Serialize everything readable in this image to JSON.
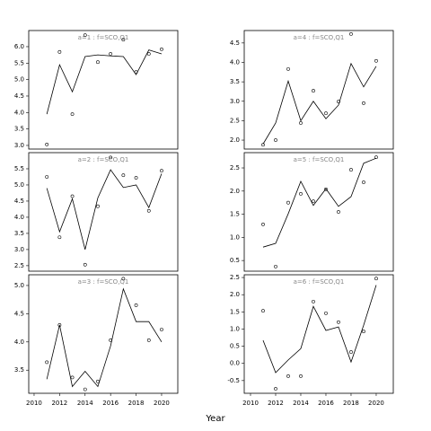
{
  "xlabel": "Year",
  "chart_data": [
    {
      "type": "line",
      "title": "a=1 : f=SCO,Q1",
      "x": [
        2011,
        2012,
        2013,
        2014,
        2015,
        2016,
        2017,
        2018,
        2019,
        2020
      ],
      "series": [
        {
          "style": "line",
          "color": "#000000",
          "values": [
            3.95,
            5.45,
            4.63,
            5.7,
            5.75,
            5.72,
            5.7,
            5.15,
            5.9,
            5.78
          ]
        },
        {
          "style": "points",
          "color": "#000000",
          "values": [
            3.03,
            5.84,
            3.95,
            6.35,
            5.53,
            5.78,
            6.21,
            5.23,
            5.78,
            5.92
          ]
        }
      ],
      "xlim": [
        2009.58,
        2021.27
      ],
      "ylim": [
        2.89,
        6.49
      ],
      "yticks": [
        {
          "value": 3,
          "label": "3.0"
        },
        {
          "value": 3.5,
          "label": "3.5"
        },
        {
          "value": 4,
          "label": "4.0"
        },
        {
          "value": 4.5,
          "label": "4.5"
        },
        {
          "value": 5,
          "label": "5.0"
        },
        {
          "value": 5.5,
          "label": "5.5"
        },
        {
          "value": 6,
          "label": "6.0"
        }
      ]
    },
    {
      "type": "line",
      "title": "a=4 : f=SCO,Q1",
      "x": [
        2011,
        2012,
        2013,
        2014,
        2015,
        2016,
        2017,
        2018,
        2019,
        2020
      ],
      "series": [
        {
          "style": "line",
          "color": "#000000",
          "values": [
            1.9,
            2.44,
            3.52,
            2.5,
            3.0,
            2.55,
            2.9,
            3.97,
            3.37,
            3.9
          ]
        },
        {
          "style": "points",
          "color": "#000000",
          "values": [
            1.88,
            2.0,
            3.83,
            2.44,
            3.27,
            2.69,
            2.99,
            4.73,
            2.95,
            4.04
          ]
        }
      ],
      "xlim": [
        2009.5,
        2021.36
      ],
      "ylim": [
        1.77,
        4.82
      ],
      "yticks": [
        {
          "value": 2,
          "label": "2.0"
        },
        2.5,
        {
          "value": 3,
          "label": "3.0"
        },
        3.5,
        {
          "value": 4,
          "label": "4.0"
        },
        4.5
      ]
    },
    {
      "type": "line",
      "title": "a=2 : f=SCO,Q1",
      "x": [
        2011,
        2012,
        2013,
        2014,
        2015,
        2016,
        2017,
        2018,
        2019,
        2020
      ],
      "series": [
        {
          "style": "line",
          "color": "#000000",
          "values": [
            4.9,
            3.55,
            4.57,
            3.0,
            4.6,
            5.47,
            4.92,
            5.0,
            4.3,
            5.35
          ]
        },
        {
          "style": "points",
          "color": "#000000",
          "values": [
            5.25,
            3.38,
            4.65,
            2.53,
            4.34,
            5.85,
            5.3,
            5.22,
            4.2,
            5.44
          ]
        }
      ],
      "xlim": [
        2009.58,
        2021.27
      ],
      "ylim": [
        2.33,
        6.0
      ],
      "yticks": [
        2.5,
        {
          "value": 3,
          "label": "3.0"
        },
        3.5,
        {
          "value": 4,
          "label": "4.0"
        },
        4.5,
        {
          "value": 5,
          "label": "5.0"
        },
        5.5
      ]
    },
    {
      "type": "line",
      "title": "a=5 : f=SCO,Q1",
      "x": [
        2011,
        2012,
        2013,
        2014,
        2015,
        2016,
        2017,
        2018,
        2019,
        2020
      ],
      "series": [
        {
          "style": "line",
          "color": "#000000",
          "values": [
            0.79,
            0.87,
            1.51,
            2.21,
            1.69,
            2.05,
            1.67,
            1.88,
            2.6,
            2.71
          ]
        },
        {
          "style": "points",
          "color": "#000000",
          "values": [
            1.28,
            0.37,
            1.75,
            1.94,
            1.78,
            2.04,
            1.55,
            2.46,
            2.19,
            2.73
          ]
        }
      ],
      "xlim": [
        2009.5,
        2021.36
      ],
      "ylim": [
        0.27,
        2.83
      ],
      "yticks": [
        0.5,
        {
          "value": 1,
          "label": "1.0"
        },
        1.5,
        {
          "value": 2,
          "label": "2.0"
        },
        2.5
      ]
    },
    {
      "type": "line",
      "title": "a=3 : f=SCO,Q1",
      "x": [
        2011,
        2012,
        2013,
        2014,
        2015,
        2016,
        2017,
        2018,
        2019,
        2020
      ],
      "series": [
        {
          "style": "line",
          "color": "#000000",
          "values": [
            3.34,
            4.3,
            3.21,
            3.48,
            3.21,
            3.93,
            4.94,
            4.36,
            4.36,
            4.0
          ]
        },
        {
          "style": "points",
          "color": "#000000",
          "values": [
            3.64,
            4.3,
            3.37,
            3.16,
            3.3,
            4.03,
            5.12,
            4.65,
            4.03,
            4.22
          ]
        }
      ],
      "xlim": [
        2009.58,
        2021.27
      ],
      "ylim": [
        3.09,
        5.19
      ],
      "xticks": [
        2010,
        2012,
        2014,
        2016,
        2018,
        2020
      ],
      "yticks": [
        3.5,
        {
          "value": 4,
          "label": "4.0"
        },
        4.5,
        {
          "value": 5,
          "label": "5.0"
        }
      ]
    },
    {
      "type": "line",
      "title": "a=6 : f=SCO,Q1",
      "x": [
        2011,
        2012,
        2013,
        2014,
        2015,
        2016,
        2017,
        2018,
        2019,
        2020
      ],
      "series": [
        {
          "style": "line",
          "color": "#000000",
          "values": [
            0.67,
            -0.27,
            0.1,
            0.43,
            1.66,
            0.96,
            1.06,
            0.04,
            1.11,
            2.28
          ]
        },
        {
          "style": "points",
          "color": "#000000",
          "values": [
            1.53,
            -0.74,
            -0.37,
            -0.37,
            1.8,
            1.46,
            1.2,
            0.33,
            0.93,
            2.47
          ]
        }
      ],
      "xlim": [
        2009.5,
        2021.36
      ],
      "ylim": [
        -0.87,
        2.58
      ],
      "xticks": [
        2010,
        2012,
        2014,
        2016,
        2018,
        2020
      ],
      "yticks": [
        -0.5,
        {
          "value": 0,
          "label": "0.0"
        },
        0.5,
        {
          "value": 1,
          "label": "1.0"
        },
        1.5,
        {
          "value": 2,
          "label": "2.0"
        },
        2.5
      ]
    }
  ]
}
